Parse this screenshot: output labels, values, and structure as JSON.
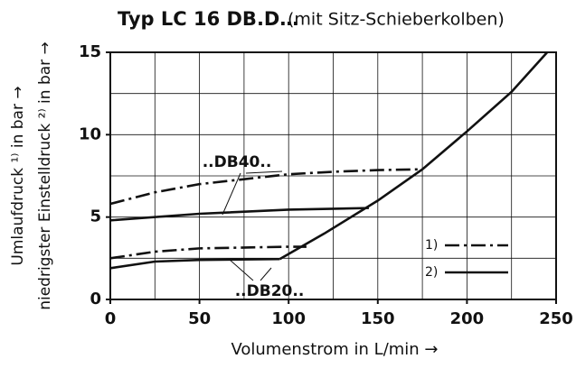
{
  "chart_data": {
    "type": "line",
    "title": "Typ LC 16 DB.D…",
    "subtitle": "(mit Sitz-Schieberkolben)",
    "x_label": "Volumenstrom in L/min →",
    "y_label": [
      "Umlaufdruck ¹⁾ in bar →",
      "niedrigster Einstelldruck ²⁾ in bar →"
    ],
    "xlim": [
      0,
      250
    ],
    "ylim": [
      0,
      15
    ],
    "xticks": [
      0,
      50,
      100,
      150,
      200,
      250
    ],
    "yticks": [
      0,
      5,
      10,
      15
    ],
    "xminorticks": [
      25,
      50,
      75,
      100,
      125,
      150,
      175,
      200,
      225
    ],
    "yminorticks": [
      2.5,
      5,
      7.5,
      10,
      12.5
    ],
    "grid": true,
    "annotations": [
      "..DB40..",
      "..DB20.."
    ],
    "legend": [
      {
        "label": "1)",
        "style": "dash-dot"
      },
      {
        "label": "2)",
        "style": "solid"
      }
    ],
    "series": [
      {
        "style": "dash-dot",
        "color": "#111",
        "x": [
          0,
          25,
          50,
          75,
          100,
          125,
          150,
          175
        ],
        "values": [
          5.8,
          6.5,
          7.0,
          7.3,
          7.6,
          7.75,
          7.85,
          7.9
        ]
      },
      {
        "style": "solid",
        "color": "#111",
        "x": [
          0,
          50,
          100,
          145
        ],
        "values": [
          4.8,
          5.2,
          5.45,
          5.55
        ]
      },
      {
        "style": "dash-dot",
        "color": "#111",
        "x": [
          0,
          25,
          50,
          100,
          110
        ],
        "values": [
          2.5,
          2.9,
          3.1,
          3.2,
          3.2
        ]
      },
      {
        "style": "solid",
        "color": "#111",
        "x": [
          0,
          25,
          50,
          95
        ],
        "values": [
          1.9,
          2.3,
          2.4,
          2.45
        ]
      },
      {
        "style": "solid",
        "color": "#111",
        "x": [
          95,
          120,
          150,
          175,
          200,
          225,
          245
        ],
        "values": [
          2.45,
          4.0,
          6.0,
          7.9,
          10.2,
          12.6,
          15
        ]
      }
    ]
  }
}
